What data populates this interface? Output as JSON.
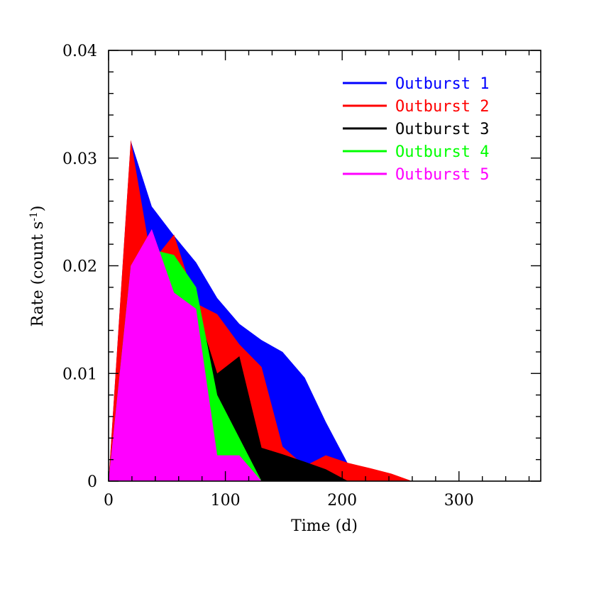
{
  "chart_data": {
    "type": "area",
    "xlabel": "Time (d)",
    "ylabel": "Rate (count s",
    "ylabel_sup": "-1",
    "ylabel_close": ")",
    "xlim": [
      0,
      370
    ],
    "ylim": [
      0,
      0.04
    ],
    "xticks": [
      0,
      100,
      200,
      300
    ],
    "xtick_labels": [
      "0",
      "100",
      "200",
      "300"
    ],
    "yticks": [
      0,
      0.01,
      0.02,
      0.03,
      0.04
    ],
    "ytick_labels": [
      "0",
      "0.01",
      "0.02",
      "0.03",
      "0.04"
    ],
    "legend_position": "top-right",
    "series": [
      {
        "name": "Outburst 1",
        "color": "#0000ff",
        "points": [
          [
            0,
            0
          ],
          [
            19,
            0.0316
          ],
          [
            37,
            0.0255
          ],
          [
            56,
            0.0228
          ],
          [
            75,
            0.0203
          ],
          [
            93,
            0.017
          ],
          [
            112,
            0.0146
          ],
          [
            131,
            0.0131
          ],
          [
            149,
            0.012
          ],
          [
            168,
            0.0096
          ],
          [
            186,
            0.0055
          ],
          [
            205,
            0.0016
          ],
          [
            215,
            0.001
          ],
          [
            260,
            0
          ]
        ]
      },
      {
        "name": "Outburst 2",
        "color": "#ff0000",
        "points": [
          [
            0,
            0
          ],
          [
            19,
            0.0317
          ],
          [
            37,
            0.0203
          ],
          [
            56,
            0.0229
          ],
          [
            75,
            0.0165
          ],
          [
            93,
            0.0155
          ],
          [
            112,
            0.0127
          ],
          [
            131,
            0.0106
          ],
          [
            149,
            0.0032
          ],
          [
            168,
            0.0014
          ],
          [
            186,
            0.0024
          ],
          [
            205,
            0.0017
          ],
          [
            224,
            0.0012
          ],
          [
            242,
            0.0007
          ],
          [
            260,
            0
          ]
        ]
      },
      {
        "name": "Outburst 3",
        "color": "#000000",
        "points": [
          [
            0,
            0
          ],
          [
            19,
            0.02
          ],
          [
            37,
            0.0217
          ],
          [
            56,
            0.0195
          ],
          [
            75,
            0.0162
          ],
          [
            93,
            0.01
          ],
          [
            112,
            0.0116
          ],
          [
            131,
            0.0031
          ],
          [
            149,
            0.0025
          ],
          [
            168,
            0.0018
          ],
          [
            186,
            0.0011
          ],
          [
            205,
            0
          ]
        ]
      },
      {
        "name": "Outburst 4",
        "color": "#00ff00",
        "points": [
          [
            0,
            0
          ],
          [
            19,
            0.02
          ],
          [
            37,
            0.0215
          ],
          [
            56,
            0.021
          ],
          [
            75,
            0.018
          ],
          [
            93,
            0.008
          ],
          [
            112,
            0.004
          ],
          [
            131,
            0
          ]
        ]
      },
      {
        "name": "Outburst 5",
        "color": "#ff00ff",
        "points": [
          [
            0,
            0
          ],
          [
            19,
            0.02
          ],
          [
            37,
            0.0234
          ],
          [
            56,
            0.0175
          ],
          [
            75,
            0.016
          ],
          [
            93,
            0.0024
          ],
          [
            112,
            0.0024
          ],
          [
            131,
            0
          ]
        ]
      }
    ]
  }
}
